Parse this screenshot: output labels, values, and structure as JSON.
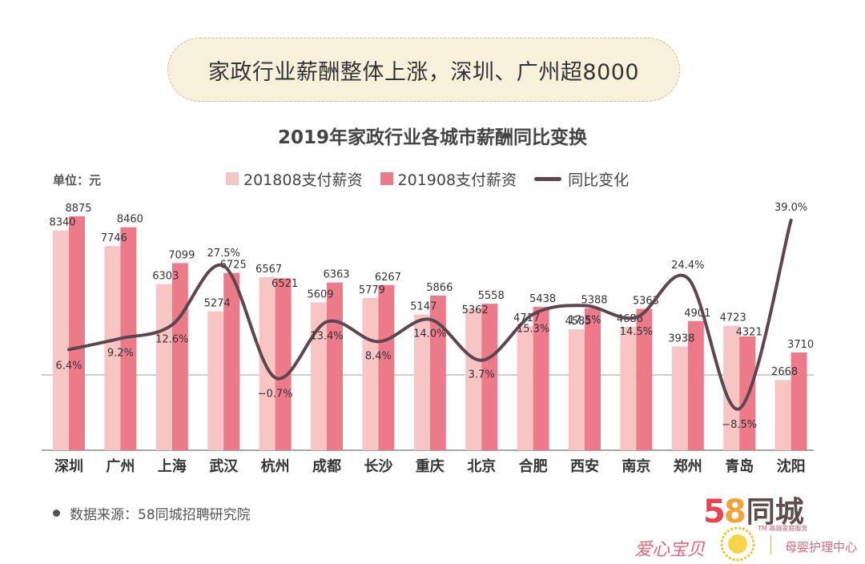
{
  "banner": {
    "text": "家政行业薪酬整体上涨，深圳、广州超8000"
  },
  "chart_data": {
    "type": "bar",
    "title": "2019年家政行业各城市薪酬同比变换",
    "unit_label": "单位：元",
    "categories": [
      "深圳",
      "广州",
      "上海",
      "武汉",
      "杭州",
      "成都",
      "长沙",
      "重庆",
      "北京",
      "合肥",
      "西安",
      "南京",
      "郑州",
      "青岛",
      "沈阳"
    ],
    "series": [
      {
        "name": "201808支付薪资",
        "color": "#f7c5c4",
        "values": [
          8340,
          7746,
          6303,
          5274,
          6567,
          5609,
          5779,
          5147,
          5362,
          4717,
          4585,
          4686,
          3938,
          4723,
          2668
        ]
      },
      {
        "name": "201908支付薪资",
        "color": "#ec7a89",
        "values": [
          8875,
          8460,
          7099,
          6725,
          6521,
          6363,
          6267,
          5866,
          5558,
          5438,
          5388,
          5363,
          4901,
          4321,
          3710
        ]
      },
      {
        "name": "同比变化",
        "type": "line",
        "color": "#5e4650",
        "values": [
          6.4,
          9.2,
          12.6,
          27.5,
          -0.7,
          13.4,
          8.4,
          14.0,
          3.7,
          15.3,
          17.5,
          14.5,
          24.4,
          -8.5,
          39.0
        ]
      }
    ],
    "yoy_labels": [
      "6.4%",
      "9.2%",
      "12.6%",
      "27.5%",
      "−0.7%",
      "13.4%",
      "8.4%",
      "14.0%",
      "3.7%",
      "15.3%",
      "17.5%",
      "14.5%",
      "24.4%",
      "−8.5%",
      "39.0%"
    ],
    "bar_ylim": [
      0,
      9000
    ],
    "line_ylim": [
      -10,
      40
    ]
  },
  "source": {
    "text": "数据来源：58同城招聘研究院"
  },
  "logo": {
    "num": "58",
    "name": "同城",
    "sub": "TM 高端家庭服务",
    "aixin": "爱心宝贝",
    "muying": "母婴护理中心"
  }
}
